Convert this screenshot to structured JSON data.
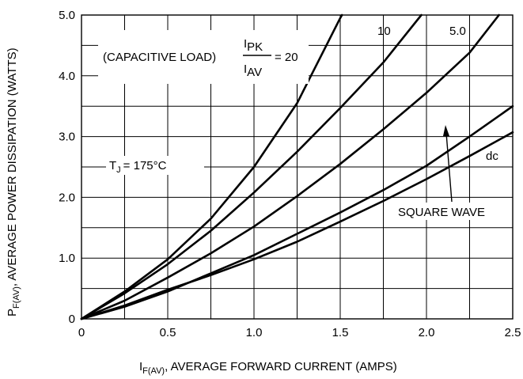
{
  "chart_data": {
    "type": "line",
    "xlabel": {
      "main": "I",
      "sub": "F(AV)",
      "rest": ", AVERAGE FORWARD CURRENT (AMPS)"
    },
    "ylabel": {
      "main": "P",
      "sub": "F(AV)",
      "rest": ", AVERAGE POWER DISSIPATION (WATTS)"
    },
    "xlim": [
      0,
      2.5
    ],
    "ylim": [
      0,
      5.0
    ],
    "x_ticks": [
      0,
      0.5,
      1.0,
      1.5,
      2.0,
      2.5
    ],
    "x_tick_labels": [
      "0",
      "0.5",
      "1.0",
      "1.5",
      "2.0",
      "2.5"
    ],
    "y_ticks": [
      0,
      1.0,
      2.0,
      3.0,
      4.0,
      5.0
    ],
    "y_tick_labels": [
      "0",
      "1.0",
      "2.0",
      "3.0",
      "4.0",
      "5.0"
    ],
    "x_grid_step": 0.25,
    "y_grid_step": 0.5,
    "grid": true,
    "annotations": {
      "capacitive_prefix": "(CAPACITIVE  LOAD)",
      "ratio_num_main": "I",
      "ratio_num_sub": "PK",
      "ratio_den_main": "I",
      "ratio_den_sub": "AV",
      "ratio_value": "=  20",
      "temp_main": "T",
      "temp_sub": "J",
      "temp_value": "= 175°C",
      "square_wave": "SQUARE WAVE"
    },
    "series": [
      {
        "name": "20",
        "x": [
          0,
          0.25,
          0.5,
          0.75,
          1.0,
          1.25,
          1.5,
          1.51
        ],
        "y": [
          0,
          0.45,
          0.98,
          1.65,
          2.5,
          3.55,
          4.95,
          5.0
        ]
      },
      {
        "name": "10",
        "x": [
          0,
          0.25,
          0.5,
          0.75,
          1.0,
          1.25,
          1.5,
          1.75,
          1.97
        ],
        "y": [
          0,
          0.42,
          0.9,
          1.45,
          2.08,
          2.75,
          3.47,
          4.22,
          5.0
        ]
      },
      {
        "name": "5.0",
        "x": [
          0,
          0.25,
          0.5,
          0.75,
          1.0,
          1.25,
          1.5,
          1.75,
          2.0,
          2.25,
          2.42
        ],
        "y": [
          0,
          0.3,
          0.68,
          1.08,
          1.52,
          2.02,
          2.55,
          3.12,
          3.72,
          4.38,
          5.0
        ]
      },
      {
        "name": "SQUARE WAVE",
        "x": [
          0,
          0.25,
          0.5,
          0.75,
          1.0,
          1.25,
          1.5,
          1.75,
          2.0,
          2.25,
          2.5
        ],
        "y": [
          0,
          0.2,
          0.45,
          0.75,
          1.05,
          1.4,
          1.75,
          2.12,
          2.52,
          3.0,
          3.5
        ]
      },
      {
        "name": "dc",
        "x": [
          0,
          0.25,
          0.5,
          0.75,
          1.0,
          1.25,
          1.5,
          1.75,
          2.0,
          2.25,
          2.5
        ],
        "y": [
          0,
          0.22,
          0.48,
          0.72,
          0.98,
          1.27,
          1.6,
          1.94,
          2.3,
          2.68,
          3.07
        ]
      }
    ]
  }
}
